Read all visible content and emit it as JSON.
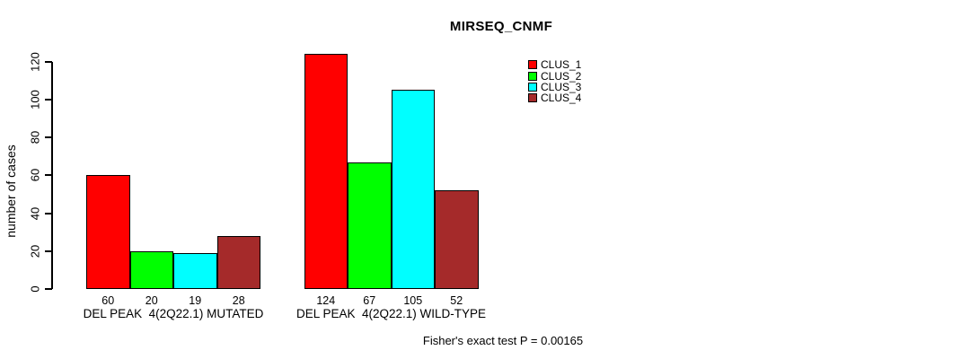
{
  "title": "MIRSEQ_CNMF",
  "footer": "Fisher's exact test P = 0.00165",
  "y_axis": {
    "label": "number of cases",
    "ticks": [
      0,
      20,
      40,
      60,
      80,
      100,
      120
    ]
  },
  "legend": {
    "items": [
      {
        "label": "CLUS_1",
        "color": "#FF0000"
      },
      {
        "label": "CLUS_2",
        "color": "#00FF00"
      },
      {
        "label": "CLUS_3",
        "color": "#00FFFF"
      },
      {
        "label": "CLUS_4",
        "color": "#A52A2A"
      }
    ]
  },
  "chart_data": {
    "type": "bar",
    "title": "MIRSEQ_CNMF",
    "xlabel": "",
    "ylabel": "number of cases",
    "ylim": [
      0,
      130
    ],
    "yticks": [
      0,
      20,
      40,
      60,
      80,
      100,
      120
    ],
    "grid": false,
    "legend_position": "top-right",
    "series": [
      "CLUS_1",
      "CLUS_2",
      "CLUS_3",
      "CLUS_4"
    ],
    "colors": [
      "#FF0000",
      "#00FF00",
      "#00FFFF",
      "#A52A2A"
    ],
    "groups": [
      {
        "label": "DEL PEAK  4(2Q22.1) MUTATED",
        "values": [
          60,
          20,
          19,
          28
        ]
      },
      {
        "label": "DEL PEAK  4(2Q22.1) WILD-TYPE",
        "values": [
          124,
          67,
          105,
          52
        ]
      }
    ],
    "bar_value_labels_shown": true,
    "annotation": "Fisher's exact test P = 0.00165"
  }
}
